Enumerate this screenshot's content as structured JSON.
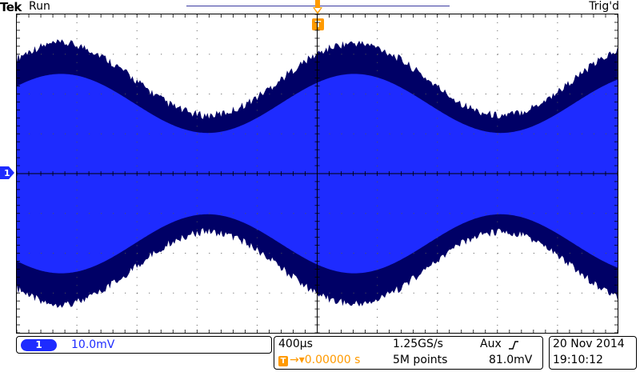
{
  "header": {
    "logo": "Tek",
    "run_status": "Run",
    "trigger_status": "Trig'd"
  },
  "markers": {
    "trigger_position": "T",
    "channel": "1"
  },
  "channel": {
    "number": "1",
    "scale": "10.0mV",
    "color": "#1e2bff"
  },
  "timebase": {
    "time_per_div": "400µs",
    "sample_rate": "1.25GS/s",
    "trigger_source": "Aux",
    "trigger_slope_icon": "rising-edge-icon",
    "trigger_delay": "0.00000 s",
    "record_length": "5M points",
    "trigger_level": "81.0mV"
  },
  "date": {
    "date": "20 Nov 2014",
    "time": "19:10:12"
  },
  "colors": {
    "waveform_core": "#1e2bff",
    "waveform_edge": "#000066",
    "trigger": "#ff9a00"
  }
}
